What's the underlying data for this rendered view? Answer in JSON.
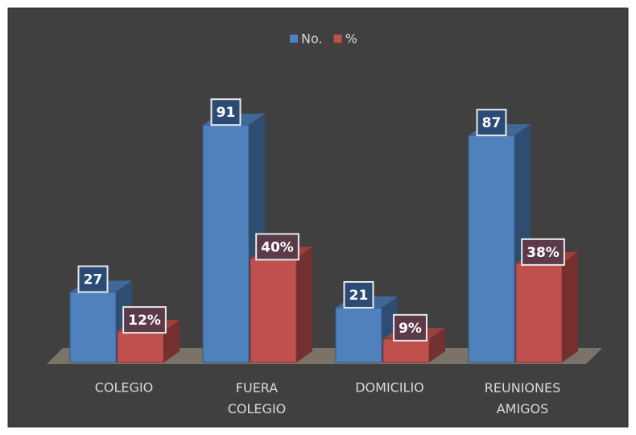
{
  "chart_data": {
    "type": "bar3d",
    "categories": [
      "COLEGIO",
      "FUERA COLEGIO",
      "DOMICILIO",
      "REUNIONES AMIGOS"
    ],
    "series": [
      {
        "name": "No.",
        "color": "#4f81bd",
        "values": [
          27,
          91,
          21,
          87
        ]
      },
      {
        "name": "%",
        "color": "#c0504d",
        "values": [
          12,
          40,
          9,
          38
        ],
        "value_labels": [
          "12%",
          "40%",
          "9%",
          "38%"
        ]
      }
    ],
    "legend": "top"
  }
}
